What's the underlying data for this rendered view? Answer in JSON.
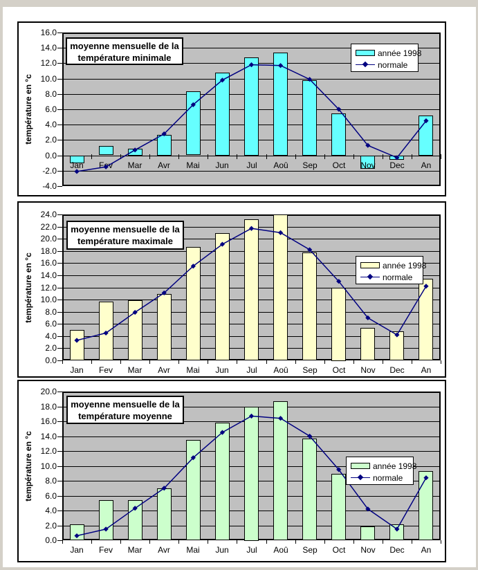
{
  "page": {
    "background_color": "#ffffff",
    "edge_color": "#d4d0c8",
    "plot_background_color": "#C0C0C0",
    "line_color": "#000080"
  },
  "chart_data": [
    {
      "type": "bar",
      "title": "moyenne mensuelle de la température minimale",
      "title_lines": [
        "moyenne mensuelle de la",
        "température minimale"
      ],
      "ylabel": "température en °c",
      "xlabel": "",
      "ylim": [
        -4.0,
        16.0
      ],
      "ystep": 2.0,
      "grid": true,
      "legend_position": "top-right",
      "plot_bg": "#C0C0C0",
      "categories": [
        "Jan",
        "Fev",
        "Mar",
        "Avr",
        "Mai",
        "Jun",
        "Jul",
        "Aoû",
        "Sep",
        "Oct",
        "Nov",
        "Dec",
        "An"
      ],
      "series": [
        {
          "name": "année 1998",
          "type": "bar",
          "color": "#66FFFF",
          "values": [
            -1.0,
            1.2,
            0.9,
            2.7,
            8.3,
            10.8,
            12.8,
            13.4,
            9.8,
            5.5,
            -1.7,
            -0.5,
            5.2
          ]
        },
        {
          "name": "normale",
          "type": "line",
          "color": "#000080",
          "marker": "diamond",
          "values": [
            -2.1,
            -1.5,
            0.7,
            2.8,
            6.6,
            9.8,
            11.8,
            11.7,
            9.9,
            6.0,
            1.3,
            -0.3,
            4.5
          ]
        }
      ]
    },
    {
      "type": "bar",
      "title": "moyenne mensuelle de la température maximale",
      "title_lines": [
        "moyenne mensuelle de la",
        "température maximale"
      ],
      "ylabel": "température en °c",
      "xlabel": "",
      "ylim": [
        0.0,
        24.0
      ],
      "ystep": 2.0,
      "grid": true,
      "legend_position": "middle-right",
      "plot_bg": "#C0C0C0",
      "categories": [
        "Jan",
        "Fev",
        "Mar",
        "Avr",
        "Mai",
        "Jun",
        "Jul",
        "Aoû",
        "Sep",
        "Oct",
        "Nov",
        "Dec",
        "An"
      ],
      "series": [
        {
          "name": "année 1998",
          "type": "bar",
          "color": "#FFFFCC",
          "values": [
            5.0,
            9.7,
            9.9,
            10.9,
            18.7,
            20.9,
            23.2,
            24.0,
            17.7,
            12.0,
            5.3,
            4.8,
            13.4
          ]
        },
        {
          "name": "normale",
          "type": "line",
          "color": "#000080",
          "marker": "diamond",
          "values": [
            3.3,
            4.5,
            7.9,
            11.1,
            15.5,
            19.1,
            21.7,
            21.0,
            18.2,
            13.0,
            7.0,
            4.2,
            12.2
          ]
        }
      ]
    },
    {
      "type": "bar",
      "title": "moyenne mensuelle de la température moyenne",
      "title_lines": [
        "moyenne mensuelle de la",
        "température moyenne"
      ],
      "ylabel": "température en °c",
      "xlabel": "",
      "ylim": [
        0.0,
        20.0
      ],
      "ystep": 2.0,
      "grid": true,
      "legend_position": "middle-right",
      "plot_bg": "#C0C0C0",
      "categories": [
        "Jan",
        "Fev",
        "Mar",
        "Avr",
        "Mai",
        "Jun",
        "Jul",
        "Aoû",
        "Sep",
        "Oct",
        "Nov",
        "Dec",
        "An"
      ],
      "series": [
        {
          "name": "année 1998",
          "type": "bar",
          "color": "#CCFFCC",
          "values": [
            2.1,
            5.4,
            5.4,
            7.0,
            13.5,
            15.8,
            18.0,
            18.7,
            13.7,
            8.9,
            1.9,
            2.1,
            9.3
          ]
        },
        {
          "name": "normale",
          "type": "line",
          "color": "#000080",
          "marker": "diamond",
          "values": [
            0.6,
            1.5,
            4.3,
            7.0,
            11.1,
            14.5,
            16.7,
            16.4,
            14.0,
            9.5,
            4.2,
            1.5,
            8.4
          ]
        }
      ]
    }
  ]
}
